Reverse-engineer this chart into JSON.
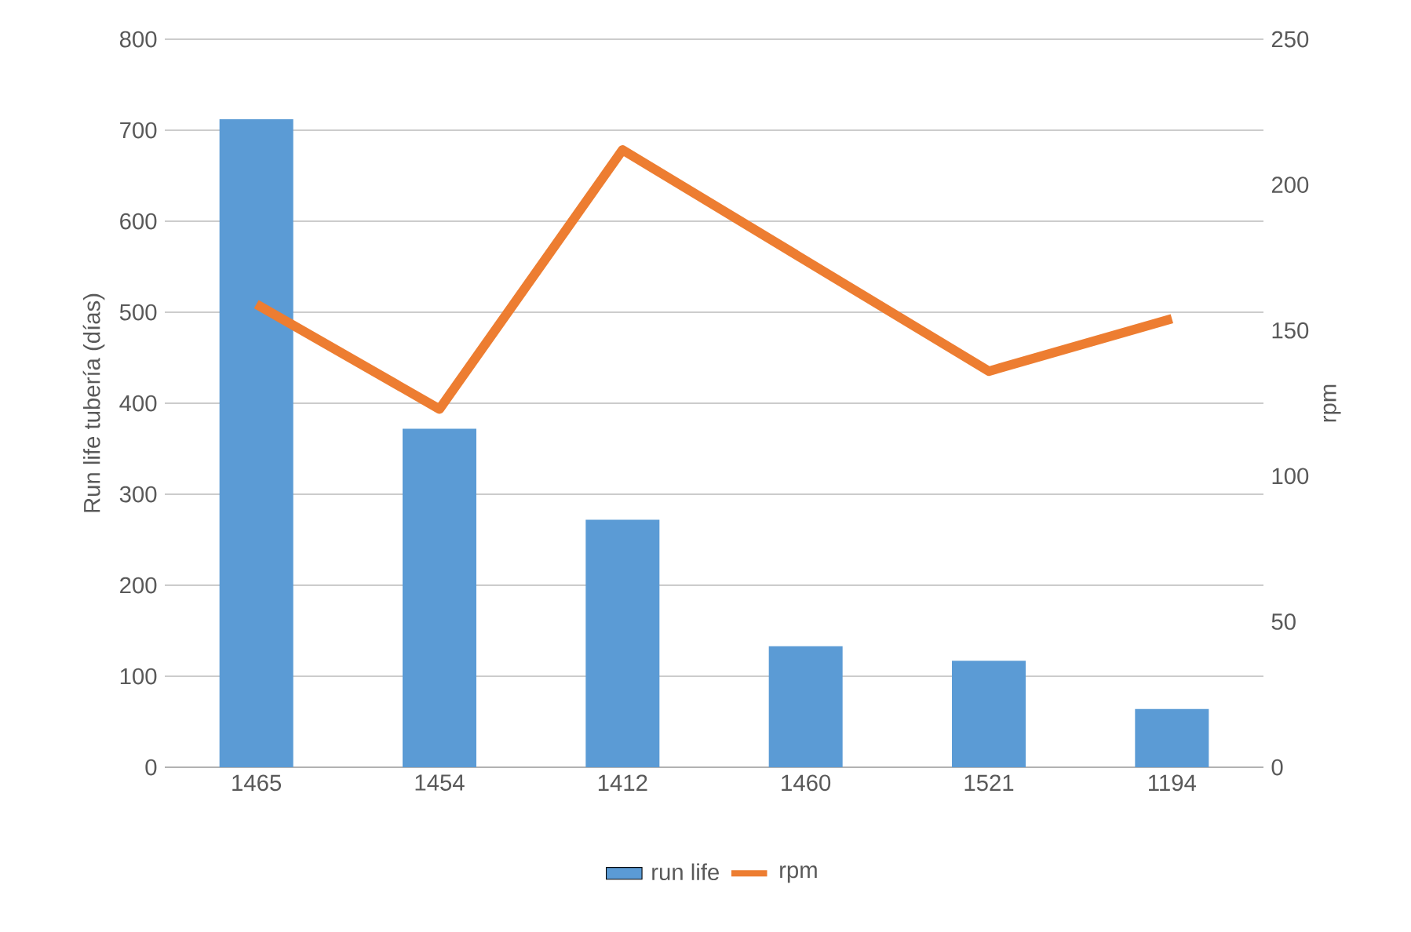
{
  "chart_data": {
    "type": "bar",
    "categories": [
      "1465",
      "1454",
      "1412",
      "1460",
      "1521",
      "1194"
    ],
    "series": [
      {
        "name": "run life",
        "color": "#5b9bd5",
        "values": [
          712,
          372,
          272,
          133,
          117,
          64
        ]
      },
      {
        "name": "rpm",
        "type": "line",
        "axis": "y2",
        "color": "#ed7d31",
        "values": [
          159,
          123,
          212,
          174,
          136,
          154
        ]
      }
    ],
    "ylabel": "Run life tubería (días)",
    "y2label": "rpm",
    "ylim": [
      0,
      800
    ],
    "yticks": [
      0,
      100,
      200,
      300,
      400,
      500,
      600,
      700,
      800
    ],
    "y2lim": [
      0,
      250
    ],
    "y2ticks": [
      0,
      50,
      100,
      150,
      200,
      250
    ],
    "grid": "y",
    "legend": "bottom",
    "marker": "none",
    "line_style": "solid"
  }
}
